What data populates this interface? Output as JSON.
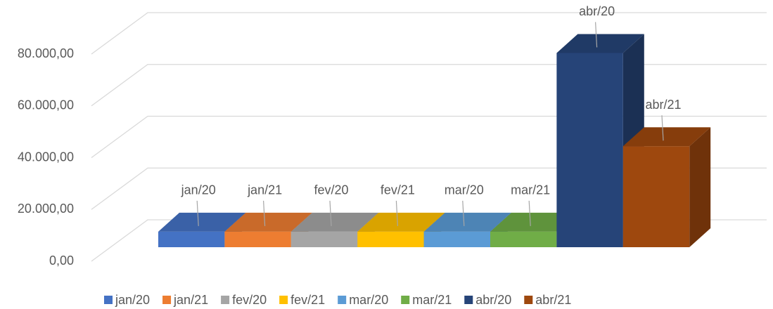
{
  "chart_data": {
    "type": "bar3d",
    "categories": [
      "jan/20",
      "jan/21",
      "fev/20",
      "fev/21",
      "mar/20",
      "mar/21",
      "abr/20",
      "abr/21"
    ],
    "values": [
      6000,
      6000,
      6000,
      6000,
      6000,
      6000,
      75000,
      39000
    ],
    "colors": [
      "#4472c4",
      "#ed7d31",
      "#a5a5a5",
      "#ffc000",
      "#5b9bd5",
      "#70ad47",
      "#264478",
      "#9e480e"
    ],
    "ylim": [
      0,
      80000
    ],
    "yticks": [
      {
        "value": 0,
        "label": "0,00"
      },
      {
        "value": 20000,
        "label": "20.000,00"
      },
      {
        "value": 40000,
        "label": "40.000,00"
      },
      {
        "value": 60000,
        "label": "60.000,00"
      },
      {
        "value": 80000,
        "label": "80.000,00"
      }
    ],
    "grid": true,
    "legend": "bottom"
  }
}
